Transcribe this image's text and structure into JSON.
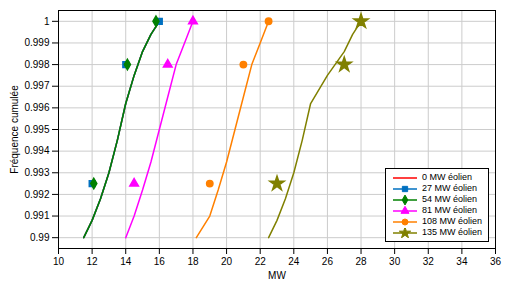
{
  "chart_data": {
    "type": "line",
    "xlabel": "MW",
    "ylabel": "Fréquence cumulée",
    "xlim": [
      10,
      36
    ],
    "ylim": [
      0.9895,
      1.0005
    ],
    "xticks": [
      10,
      12,
      14,
      16,
      18,
      20,
      22,
      24,
      26,
      28,
      30,
      32,
      34,
      36
    ],
    "yticks": [
      0.99,
      0.991,
      0.992,
      0.993,
      0.994,
      0.995,
      0.996,
      0.997,
      0.998,
      0.999,
      1
    ],
    "grid": true,
    "legend": "lower right",
    "series": [
      {
        "name": "0 MW éolien",
        "color": "#FF0000",
        "x": [
          11.5,
          12.0,
          12.5,
          13.0,
          13.5,
          14.0,
          14.5,
          15.0,
          15.5,
          16.0
        ],
        "values": [
          0.99,
          0.9908,
          0.9918,
          0.993,
          0.9945,
          0.9962,
          0.9975,
          0.9986,
          0.9994,
          1.0
        ]
      },
      {
        "name": "27 MW éolien",
        "color": "#0070C0",
        "marker": "square",
        "x": [
          11.5,
          12.0,
          12.5,
          13.0,
          13.5,
          14.0,
          14.5,
          15.0,
          15.5,
          16.0
        ],
        "values": [
          0.99,
          0.9908,
          0.9918,
          0.993,
          0.9945,
          0.9962,
          0.9975,
          0.9986,
          0.9994,
          1.0
        ],
        "marker_x": [
          12.0,
          14.0,
          16.0
        ],
        "marker_y": [
          0.9925,
          0.998,
          1.0
        ]
      },
      {
        "name": "54 MW éolien",
        "color": "#008000",
        "marker": "diamond",
        "x": [
          11.5,
          12.0,
          12.5,
          13.0,
          13.5,
          14.0,
          14.5,
          15.0,
          15.5,
          16.0
        ],
        "values": [
          0.99,
          0.9908,
          0.9918,
          0.993,
          0.9945,
          0.9962,
          0.9975,
          0.9986,
          0.9994,
          1.0
        ],
        "marker_x": [
          12.1,
          14.1,
          15.8
        ],
        "marker_y": [
          0.9925,
          0.998,
          1.0
        ]
      },
      {
        "name": "81 MW éolien",
        "color": "#FF00FF",
        "marker": "triangle",
        "x": [
          14.0,
          14.5,
          15.0,
          15.5,
          16.0,
          16.5,
          17.0,
          17.5,
          18.0
        ],
        "values": [
          0.99,
          0.991,
          0.9922,
          0.9935,
          0.995,
          0.9965,
          0.998,
          0.999,
          1.0
        ],
        "marker_x": [
          14.5,
          16.5,
          18.0
        ],
        "marker_y": [
          0.9925,
          0.998,
          1.0
        ]
      },
      {
        "name": "108 MW éolien",
        "color": "#FF8000",
        "marker": "circle",
        "x": [
          18.2,
          19.0,
          19.5,
          20.0,
          20.5,
          21.0,
          21.5,
          22.0,
          22.5
        ],
        "values": [
          0.99,
          0.991,
          0.9922,
          0.9935,
          0.995,
          0.9965,
          0.998,
          0.999,
          1.0
        ],
        "marker_x": [
          19.0,
          21.0,
          22.5
        ],
        "marker_y": [
          0.9925,
          0.998,
          1.0
        ]
      },
      {
        "name": "135 MW éolien",
        "color": "#808000",
        "marker": "star",
        "x": [
          22.5,
          23.0,
          23.5,
          24.0,
          24.5,
          25.0,
          26.0,
          27.0,
          27.5,
          28.0
        ],
        "values": [
          0.99,
          0.9908,
          0.9918,
          0.993,
          0.9945,
          0.9962,
          0.9975,
          0.9986,
          0.9994,
          1.0
        ],
        "marker_x": [
          23.0,
          27.0,
          28.0
        ],
        "marker_y": [
          0.9925,
          0.998,
          1.0
        ]
      }
    ]
  }
}
